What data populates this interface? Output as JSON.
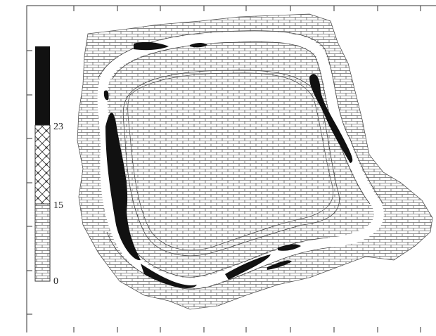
{
  "legend": {
    "labels": [
      "23",
      "15",
      "0"
    ]
  }
}
